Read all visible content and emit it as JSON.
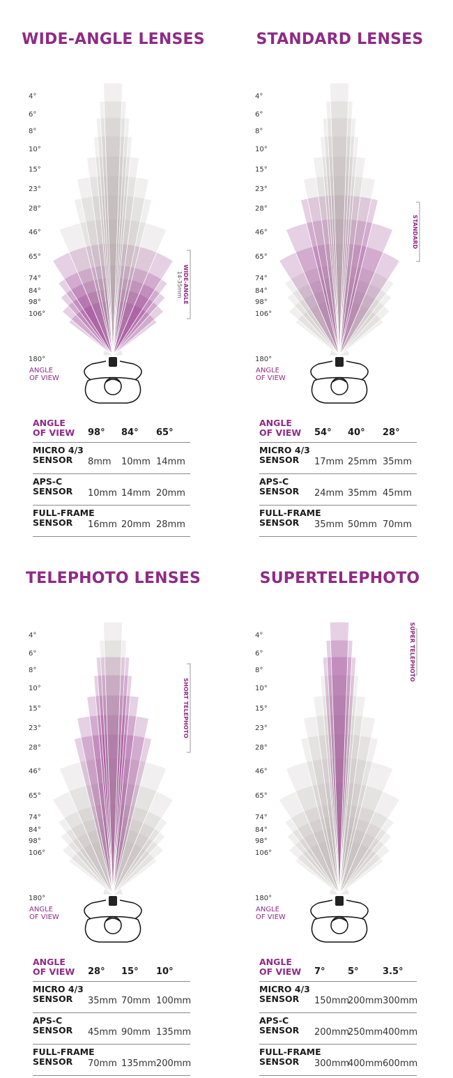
{
  "colors": {
    "accent": "#8f2a86",
    "neutral": "#c9c3c3"
  },
  "ticks": [
    "4°",
    "6°",
    "8°",
    "10°",
    "15°",
    "23°",
    "28°",
    "46°",
    "65°",
    "74°",
    "84°",
    "98°",
    "106°",
    "180°"
  ],
  "angle_of_view_caption": [
    "ANGLE",
    "OF VIEW"
  ],
  "panels": [
    {
      "title": "WIDE-ANGLE LENSES",
      "highlight": [
        "65°",
        "74°",
        "84°",
        "98°",
        "106°"
      ],
      "bracket": {
        "label": "WIDE-ANGLE",
        "sublabel": "14-35mm"
      },
      "table": {
        "header": {
          "label": [
            "ANGLE",
            "OF VIEW"
          ],
          "values": [
            "98°",
            "84°",
            "65°"
          ]
        },
        "rows": [
          {
            "label": [
              "MICRO 4/3",
              "SENSOR"
            ],
            "values": [
              "8mm",
              "10mm",
              "14mm"
            ]
          },
          {
            "label": [
              "APS-C",
              "SENSOR"
            ],
            "values": [
              "10mm",
              "14mm",
              "20mm"
            ]
          },
          {
            "label": [
              "FULL-FRAME",
              "SENSOR"
            ],
            "values": [
              "16mm",
              "20mm",
              "28mm"
            ]
          }
        ]
      }
    },
    {
      "title": "STANDARD LENSES",
      "highlight": [
        "28°",
        "46°",
        "65°"
      ],
      "bracket": {
        "label": "STANDARD",
        "sublabel": ""
      },
      "table": {
        "header": {
          "label": [
            "ANGLE",
            "OF VIEW"
          ],
          "values": [
            "54°",
            "40°",
            "28°"
          ]
        },
        "rows": [
          {
            "label": [
              "MICRO 4/3",
              "SENSOR"
            ],
            "values": [
              "17mm",
              "25mm",
              "35mm"
            ]
          },
          {
            "label": [
              "APS-C",
              "SENSOR"
            ],
            "values": [
              "24mm",
              "35mm",
              "45mm"
            ]
          },
          {
            "label": [
              "FULL-FRAME",
              "SENSOR"
            ],
            "values": [
              "35mm",
              "50mm",
              "70mm"
            ]
          }
        ]
      }
    },
    {
      "title": "TELEPHOTO LENSES",
      "highlight": [
        "8°",
        "10°",
        "15°",
        "23°",
        "28°"
      ],
      "bracket": {
        "label": "SHORT TELEPHOTO",
        "sublabel": ""
      },
      "table": {
        "header": {
          "label": [
            "ANGLE",
            "OF VIEW"
          ],
          "values": [
            "28°",
            "15°",
            "10°"
          ]
        },
        "rows": [
          {
            "label": [
              "MICRO 4/3",
              "SENSOR"
            ],
            "values": [
              "35mm",
              "70mm",
              "100mm"
            ]
          },
          {
            "label": [
              "APS-C",
              "SENSOR"
            ],
            "values": [
              "45mm",
              "90mm",
              "135mm"
            ]
          },
          {
            "label": [
              "FULL-FRAME",
              "SENSOR"
            ],
            "values": [
              "70mm",
              "135mm",
              "200mm"
            ]
          }
        ]
      }
    },
    {
      "title": "SUPERTELEPHOTO",
      "highlight": [
        "4°",
        "6°",
        "8°"
      ],
      "bracket": {
        "label": "SUPER TELEPHOTO",
        "sublabel": ""
      },
      "table": {
        "header": {
          "label": [
            "ANGLE",
            "OF VIEW"
          ],
          "values": [
            "7°",
            "5°",
            "3.5°"
          ]
        },
        "rows": [
          {
            "label": [
              "MICRO 4/3",
              "SENSOR"
            ],
            "values": [
              "150mm",
              "200mm",
              "300mm"
            ]
          },
          {
            "label": [
              "APS-C",
              "SENSOR"
            ],
            "values": [
              "200mm",
              "250mm",
              "400mm"
            ]
          },
          {
            "label": [
              "FULL-FRAME",
              "SENSOR"
            ],
            "values": [
              "300mm",
              "400mm",
              "600mm"
            ]
          }
        ]
      }
    }
  ]
}
